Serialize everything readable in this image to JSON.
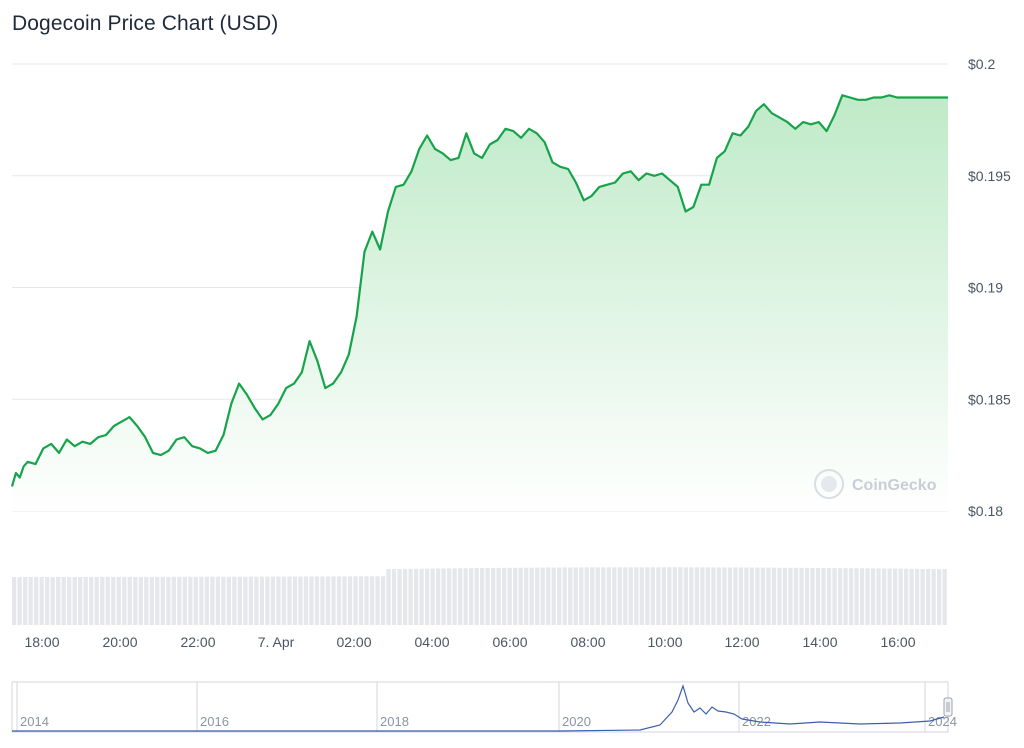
{
  "title": "Dogecoin Price Chart (USD)",
  "watermark": "CoinGecko",
  "colors": {
    "line": "#16a34a",
    "area_top": "#bfeac8",
    "area_bottom": "#ffffff",
    "grid": "#e5e7eb",
    "volume": "#e5e7eb",
    "navigator_line": "#3b5fb0",
    "navigator_border": "#d1d5db"
  },
  "chart_data": [
    {
      "type": "area",
      "title": "Dogecoin Price Chart (USD)",
      "x_ticks": [
        "18:00",
        "20:00",
        "22:00",
        "7. Apr",
        "02:00",
        "04:00",
        "06:00",
        "08:00",
        "10:00",
        "12:00",
        "14:00",
        "16:00"
      ],
      "y_ticks": [
        "$0.2",
        "$0.195",
        "$0.19",
        "$0.185",
        "$0.18"
      ],
      "y_tick_values": [
        0.2,
        0.195,
        0.19,
        0.185,
        0.18
      ],
      "ylim": [
        0.18,
        0.2
      ],
      "x_range_hours": [
        -6.6,
        17.3
      ],
      "grid": true,
      "series": [
        {
          "x": [
            -6.6,
            -6.5,
            -6.4,
            -6.3,
            -6.2,
            -6.0,
            -5.8,
            -5.6,
            -5.4,
            -5.2,
            -5.0,
            -4.8,
            -4.6,
            -4.4,
            -4.2,
            -4.0,
            -3.8,
            -3.6,
            -3.4,
            -3.2,
            -3.0,
            -2.8,
            -2.6,
            -2.4,
            -2.2,
            -2.0,
            -1.8,
            -1.6,
            -1.4,
            -1.2,
            -1.0,
            -0.8,
            -0.6,
            -0.4,
            -0.2,
            0.0,
            0.2,
            0.4,
            0.6,
            0.8,
            1.0,
            1.2,
            1.4,
            1.6,
            1.8,
            2.0,
            2.2,
            2.4,
            2.6,
            2.8,
            3.0,
            3.2,
            3.4,
            3.6,
            3.8,
            4.0,
            4.2,
            4.4,
            4.6,
            4.8,
            5.0,
            5.2,
            5.4,
            5.6,
            5.8,
            6.0,
            6.2,
            6.4,
            6.6,
            6.8,
            7.0,
            7.2,
            7.4,
            7.6,
            7.8,
            8.0,
            8.2,
            8.4,
            8.6,
            8.8,
            9.0,
            9.2,
            9.4,
            9.6,
            9.8,
            10.0,
            10.2,
            10.4,
            10.6,
            10.8,
            11.0,
            11.2,
            11.4,
            11.6,
            11.8,
            12.0,
            12.2,
            12.4,
            12.6,
            12.8,
            13.0,
            13.2,
            13.4,
            13.6,
            13.8,
            14.0,
            14.2,
            14.4,
            14.6,
            14.8,
            15.0,
            15.2,
            15.4,
            15.6,
            15.8,
            16.0,
            16.2,
            16.4,
            16.6,
            16.8,
            17.0,
            17.2,
            17.3
          ],
          "y": [
            0.1811,
            0.1817,
            0.1815,
            0.182,
            0.1822,
            0.1821,
            0.1828,
            0.183,
            0.1826,
            0.1832,
            0.1829,
            0.1831,
            0.183,
            0.1833,
            0.1834,
            0.1838,
            0.184,
            0.1842,
            0.1838,
            0.1833,
            0.1826,
            0.1825,
            0.1827,
            0.1832,
            0.1833,
            0.1829,
            0.1828,
            0.1826,
            0.1827,
            0.1834,
            0.1848,
            0.1857,
            0.1852,
            0.1846,
            0.1841,
            0.1843,
            0.1848,
            0.1855,
            0.1857,
            0.1862,
            0.1876,
            0.1867,
            0.1855,
            0.1857,
            0.1862,
            0.187,
            0.1887,
            0.1916,
            0.1925,
            0.1917,
            0.1934,
            0.1945,
            0.1946,
            0.1952,
            0.1962,
            0.1968,
            0.1962,
            0.196,
            0.1957,
            0.1958,
            0.1969,
            0.196,
            0.1958,
            0.1964,
            0.1966,
            0.1971,
            0.197,
            0.1967,
            0.1971,
            0.1969,
            0.1965,
            0.1956,
            0.1954,
            0.1953,
            0.1947,
            0.1939,
            0.1941,
            0.1945,
            0.1946,
            0.1947,
            0.1951,
            0.1952,
            0.1948,
            0.1951,
            0.195,
            0.1951,
            0.1948,
            0.1945,
            0.1934,
            0.1936,
            0.1946,
            0.1946,
            0.1958,
            0.1961,
            0.1969,
            0.1968,
            0.1972,
            0.1979,
            0.1982,
            0.1978,
            0.1976,
            0.1974,
            0.1971,
            0.1974,
            0.1973,
            0.1974,
            0.197,
            0.1977,
            0.1986,
            0.1985,
            0.1984,
            0.1984,
            0.1985,
            0.1985,
            0.1986,
            0.1985,
            0.1985,
            0.1985,
            0.1985,
            0.1985,
            0.1985,
            0.1985,
            0.1985
          ]
        }
      ]
    },
    {
      "type": "area",
      "title": "",
      "x_ticks": [
        "2014",
        "2016",
        "2018",
        "2020",
        "2022",
        "2024"
      ]
    }
  ]
}
